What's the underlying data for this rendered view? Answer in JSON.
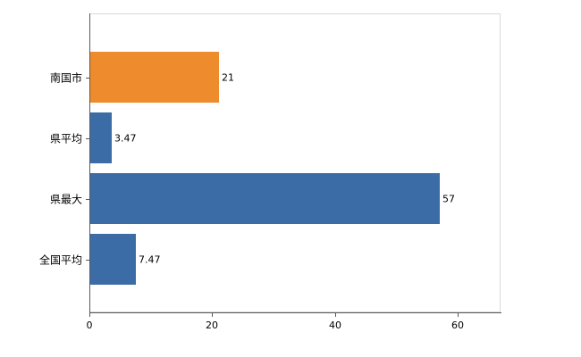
{
  "chart_data": {
    "type": "bar",
    "orientation": "horizontal",
    "title": "",
    "xlabel": "",
    "ylabel": "",
    "categories": [
      "南国市",
      "県平均",
      "県最大",
      "全国平均"
    ],
    "values": [
      21,
      3.47,
      57,
      7.47
    ],
    "value_labels": [
      "21",
      "3.47",
      "57",
      "7.47"
    ],
    "bar_colors": [
      "#EE8B2C",
      "#3C6CA5",
      "#3C6CA5",
      "#3C6CA5"
    ],
    "x_ticks": [
      0,
      20,
      40,
      60
    ],
    "x_tick_labels": [
      "0",
      "20",
      "40",
      "60"
    ],
    "xlim": [
      0,
      67
    ],
    "grid": false,
    "legend": "none",
    "axis_color": "#595959",
    "plot_border_color": "#d9d9d9",
    "background_color": "#ffffff"
  }
}
